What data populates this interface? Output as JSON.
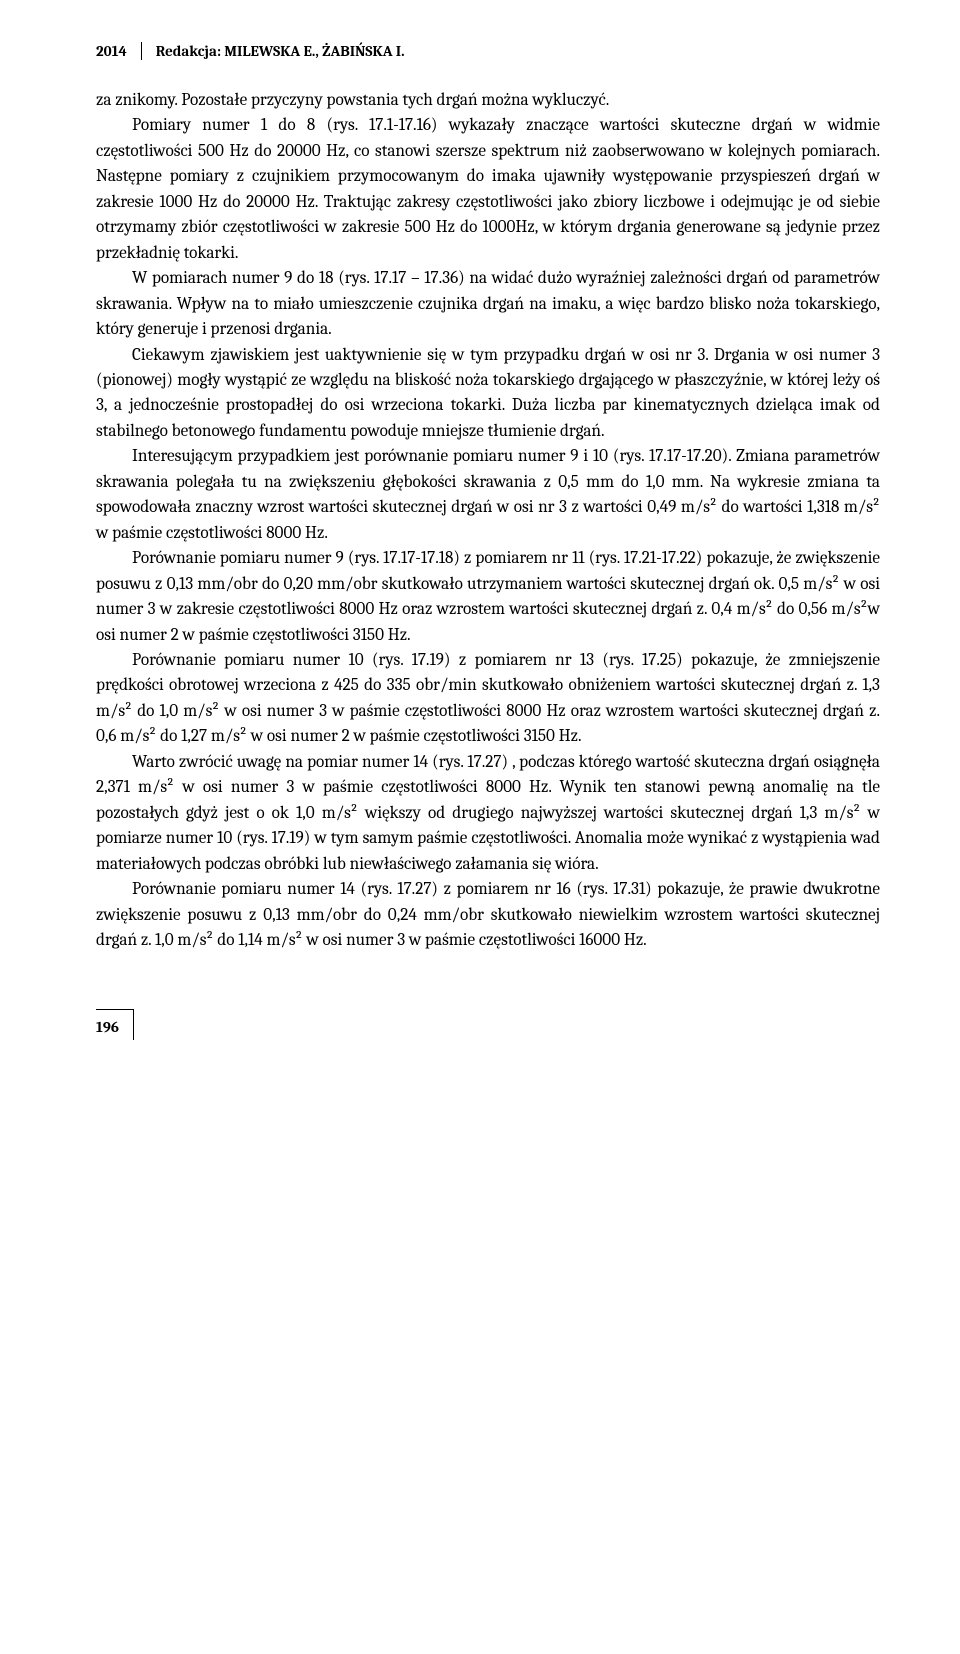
{
  "header": {
    "year": "2014",
    "editor": "Redakcja: MILEWSKA E., ŻABIŃSKA I."
  },
  "page_number": "196",
  "paragraphs": [
    "za znikomy. Pozostałe przyczyny powstania tych drgań można wykluczyć.",
    "Pomiary numer 1 do 8 (rys. 17.1-17.16) wykazały znaczące wartości skuteczne drgań w widmie częstotliwości 500 Hz do 20000 Hz, co stanowi szersze spektrum niż zaobserwowano w kolejnych pomiarach. Następne pomiary z czujnikiem przymocowa­nym do imaka ujawniły występowanie przyspieszeń drgań w zakresie 1000 Hz do 20000 Hz. Traktując zakresy częstotliwości jako zbiory liczbowe i odejmując je od siebie otrzymamy zbiór częstotliwości w zakresie 500 Hz do 1000Hz, w którym drga­nia generowane są jedynie przez przekładnię tokarki.",
    "W pomiarach numer 9 do 18 (rys. 17.17 – 17.36) na widać dużo wyraźniej zależności drgań od parametrów skrawania. Wpływ na to miało umieszczenie czujnika drgań na imaku, a więc bardzo blisko noża tokarskiego, który generuje i przenosi drgania.",
    "Ciekawym zjawiskiem jest uaktywnienie się w tym przypadku drgań w osi nr 3. Drgania w osi numer 3 (pionowej) mogły wystąpić ze względu na bliskość noża tokarskiego drgającego w płaszczyźnie, w której leży oś 3, a jednocześnie prostopadłej do osi wrzeciona tokarki. Duża liczba par kinematycznych dzieląca imak od stabilnego betonowego fundamentu powoduje mniejsze tłumienie drgań.",
    "Interesującym przypadkiem jest porównanie pomiaru numer 9 i 10 (rys. 17.17-17.20). Zmiana parametrów skrawania polegała tu na zwiększeniu głębokości skrawania z 0,5 mm do 1,0 mm. Na wykresie zmiana ta spowodowała znaczny wzrost wartości skutecznej drgań w osi nr 3 z wartości 0,49 m/s² do wartości 1,318 m/s² w paśmie częstotliwości 8000 Hz.",
    "Porównanie pomiaru numer 9 (rys. 17.17-17.18) z pomiarem nr 11 (rys. 17.21-17.22) pokazuje, że zwiększenie posuwu z 0,13 mm/obr do 0,20 mm/obr skutkowało utrzymaniem wartości skutecznej drgań ok. 0,5 m/s² w osi numer 3 w zakresie częstotliwości 8000 Hz oraz wzrostem wartości skutecznej drgań z. 0,4 m/s² do 0,56 m/s²w osi numer 2 w paśmie częstotliwości 3150 Hz.",
    "Porównanie pomiaru numer 10 (rys. 17.19) z pomiarem nr 13 (rys. 17.25) pokazuje, że zmniejszenie prędkości obrotowej wrzeciona z 425 do 335 obr/min skutkowało obniżeniem wartości skutecznej drgań z. 1,3 m/s² do 1,0 m/s² w osi numer 3 w paśmie częstotliwości 8000 Hz oraz wzrostem wartości skutecznej drgań z. 0,6 m/s² do 1,27 m/s² w osi numer 2 w paśmie częstotliwości 3150 Hz.",
    "Warto zwrócić uwagę na pomiar numer 14 (rys. 17.27) , podczas którego wartość skuteczna drgań osiągnęła 2,371 m/s² w osi numer 3 w paśmie częstotliwości 8000 Hz. Wynik ten stanowi pewną anomalię na tle pozostałych gdyż jest o ok 1,0 m/s² większy od drugiego najwyższej wartości skutecznej drgań 1,3 m/s² w pomiarze numer 10 (rys. 17.19) w tym samym paśmie częstotliwości. Anomalia może wynikać z wystąpienia wad materiałowych podczas obróbki lub niewłaściwego załamania się wióra.",
    "Porównanie pomiaru numer 14 (rys. 17.27) z pomiarem nr 16 (rys. 17.31) pokazuje, że prawie dwukrotne zwiększenie posuwu z 0,13 mm/obr do 0,24 mm/obr skutkowało niewielkim wzrostem wartości skutecznej drgań z. 1,0 m/s² do 1,14 m/s² w osi numer 3 w paśmie częstotliwości 16000 Hz."
  ]
}
